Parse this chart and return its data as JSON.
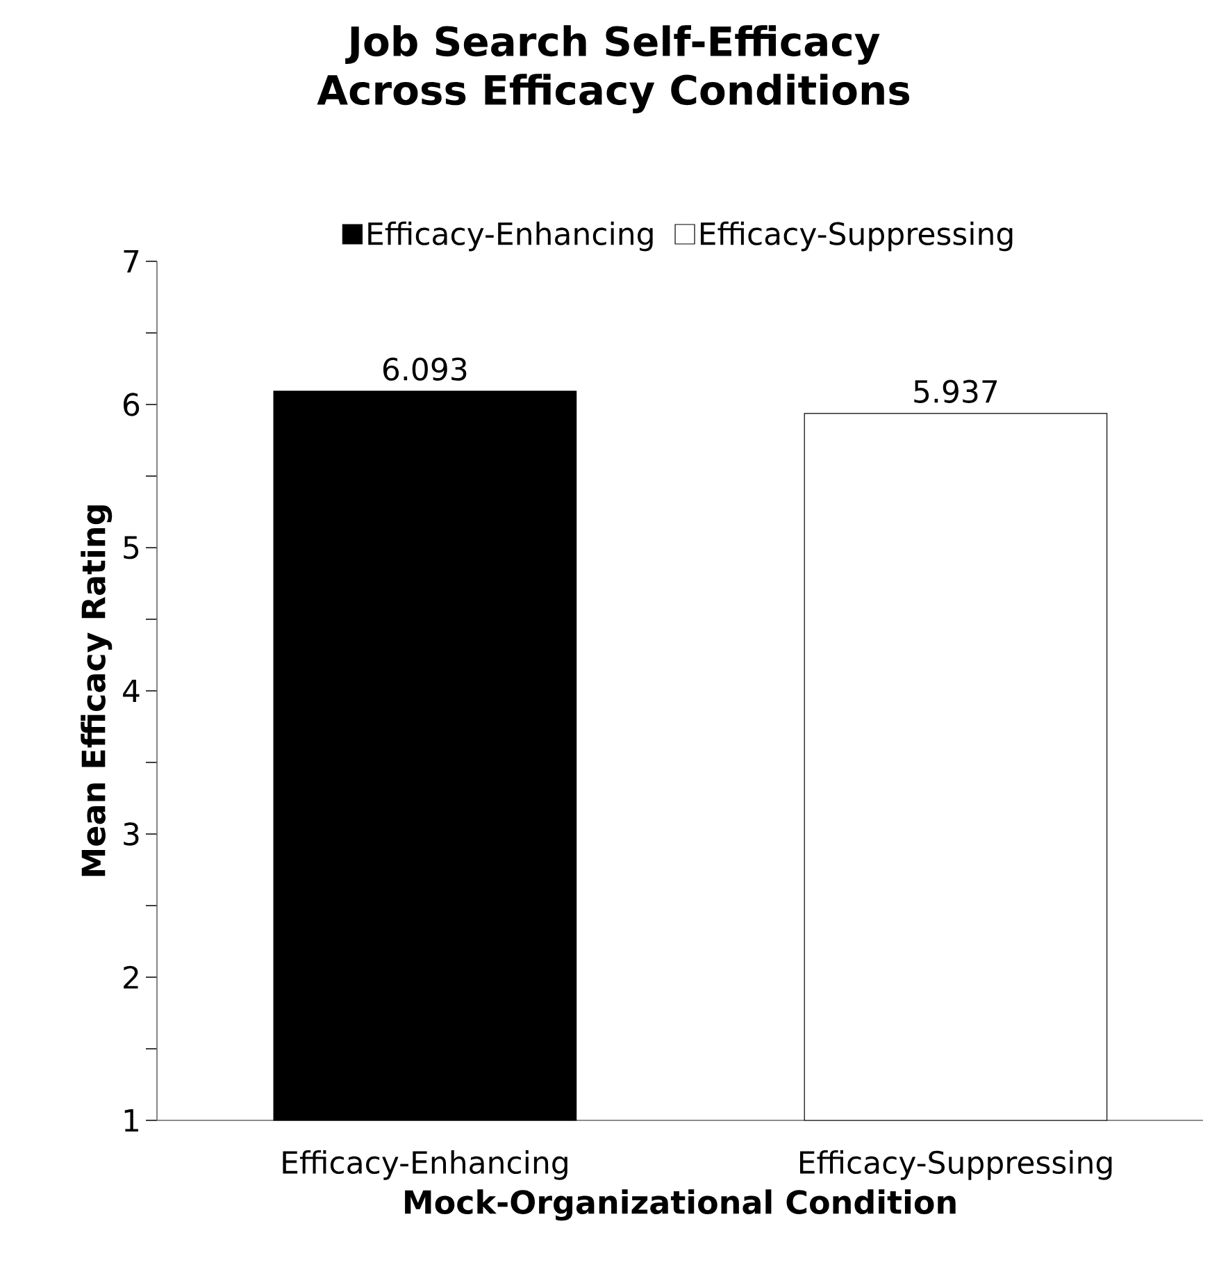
{
  "chart_data": {
    "type": "bar",
    "title": "Job Search Self-Efficacy\nAcross Efficacy Conditions",
    "xlabel": "Mock-Organizational  Condition",
    "ylabel": "Mean  Efficacy  Rating",
    "categories": [
      "Efficacy-Enhancing",
      "Efficacy-Suppressing"
    ],
    "series": [
      {
        "name": "Efficacy-Enhancing",
        "color": "#000000",
        "values": [
          6.093,
          null
        ]
      },
      {
        "name": "Efficacy-Suppressing",
        "color": "#ffffff",
        "values": [
          null,
          5.937
        ]
      }
    ],
    "ylim": [
      1,
      7
    ],
    "yticks": [
      1,
      2,
      3,
      4,
      5,
      6,
      7
    ],
    "data_labels": true,
    "legend": "top",
    "grid": false
  }
}
